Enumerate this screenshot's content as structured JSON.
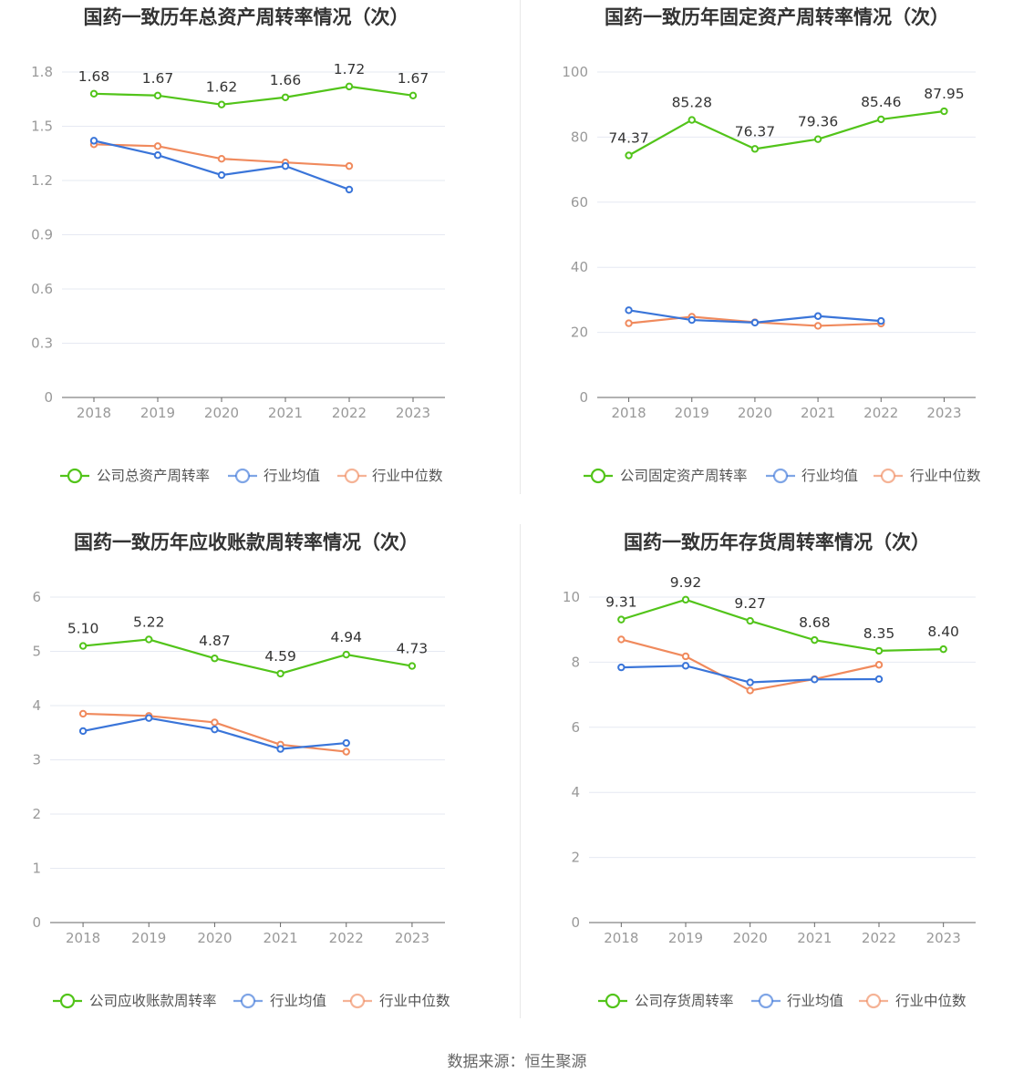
{
  "source_text": "数据来源：恒生聚源",
  "chart_data": [
    {
      "type": "line",
      "title": "国药一致历年总资产周转率情况（次）",
      "categories": [
        "2018",
        "2019",
        "2020",
        "2021",
        "2022",
        "2023"
      ],
      "yticks": [
        "0",
        "0.3",
        "0.6",
        "0.9",
        "1.2",
        "1.5",
        "1.8"
      ],
      "ylim": [
        0,
        1.8
      ],
      "series": [
        {
          "name": "公司总资产周转率",
          "color": "#52c41a",
          "values": [
            1.68,
            1.67,
            1.62,
            1.66,
            1.72,
            1.67
          ],
          "labels": [
            "1.68",
            "1.67",
            "1.62",
            "1.66",
            "1.72",
            "1.67"
          ]
        },
        {
          "name": "行业均值",
          "color": "#3a75d9",
          "values": [
            1.42,
            1.34,
            1.23,
            1.28,
            1.15,
            null
          ]
        },
        {
          "name": "行业中位数",
          "color": "#f08a5d",
          "values": [
            1.4,
            1.39,
            1.32,
            1.3,
            1.28,
            null
          ]
        }
      ]
    },
    {
      "type": "line",
      "title": "国药一致历年固定资产周转率情况（次）",
      "categories": [
        "2018",
        "2019",
        "2020",
        "2021",
        "2022",
        "2023"
      ],
      "yticks": [
        "0",
        "20",
        "40",
        "60",
        "80",
        "100"
      ],
      "ylim": [
        0,
        100
      ],
      "series": [
        {
          "name": "公司固定资产周转率",
          "color": "#52c41a",
          "values": [
            74.37,
            85.28,
            76.37,
            79.36,
            85.46,
            87.95
          ],
          "labels": [
            "74.37",
            "85.28",
            "76.37",
            "79.36",
            "85.46",
            "87.95"
          ]
        },
        {
          "name": "行业均值",
          "color": "#3a75d9",
          "values": [
            26.8,
            23.8,
            23.0,
            25.0,
            23.5,
            null
          ]
        },
        {
          "name": "行业中位数",
          "color": "#f08a5d",
          "values": [
            22.8,
            24.8,
            23.1,
            22.0,
            22.7,
            null
          ]
        }
      ]
    },
    {
      "type": "line",
      "title": "国药一致历年应收账款周转率情况（次）",
      "categories": [
        "2018",
        "2019",
        "2020",
        "2021",
        "2022",
        "2023"
      ],
      "yticks": [
        "0",
        "1",
        "2",
        "3",
        "4",
        "5",
        "6"
      ],
      "ylim": [
        0,
        6
      ],
      "series": [
        {
          "name": "公司应收账款周转率",
          "color": "#52c41a",
          "values": [
            5.1,
            5.22,
            4.87,
            4.59,
            4.94,
            4.73
          ],
          "labels": [
            "5.10",
            "5.22",
            "4.87",
            "4.59",
            "4.94",
            "4.73"
          ]
        },
        {
          "name": "行业均值",
          "color": "#3a75d9",
          "values": [
            3.53,
            3.77,
            3.56,
            3.2,
            3.31,
            null
          ]
        },
        {
          "name": "行业中位数",
          "color": "#f08a5d",
          "values": [
            3.85,
            3.81,
            3.69,
            3.28,
            3.15,
            null
          ]
        }
      ]
    },
    {
      "type": "line",
      "title": "国药一致历年存货周转率情况（次）",
      "categories": [
        "2018",
        "2019",
        "2020",
        "2021",
        "2022",
        "2023"
      ],
      "yticks": [
        "0",
        "2",
        "4",
        "6",
        "8",
        "10"
      ],
      "ylim": [
        0,
        10
      ],
      "series": [
        {
          "name": "公司存货周转率",
          "color": "#52c41a",
          "values": [
            9.31,
            9.92,
            9.27,
            8.68,
            8.35,
            8.4
          ],
          "labels": [
            "9.31",
            "9.92",
            "9.27",
            "8.68",
            "8.35",
            "8.40"
          ]
        },
        {
          "name": "行业均值",
          "color": "#3a75d9",
          "values": [
            7.84,
            7.89,
            7.38,
            7.47,
            7.48,
            null
          ]
        },
        {
          "name": "行业中位数",
          "color": "#f08a5d",
          "values": [
            8.7,
            8.18,
            7.13,
            7.48,
            7.92,
            null
          ]
        }
      ]
    }
  ]
}
